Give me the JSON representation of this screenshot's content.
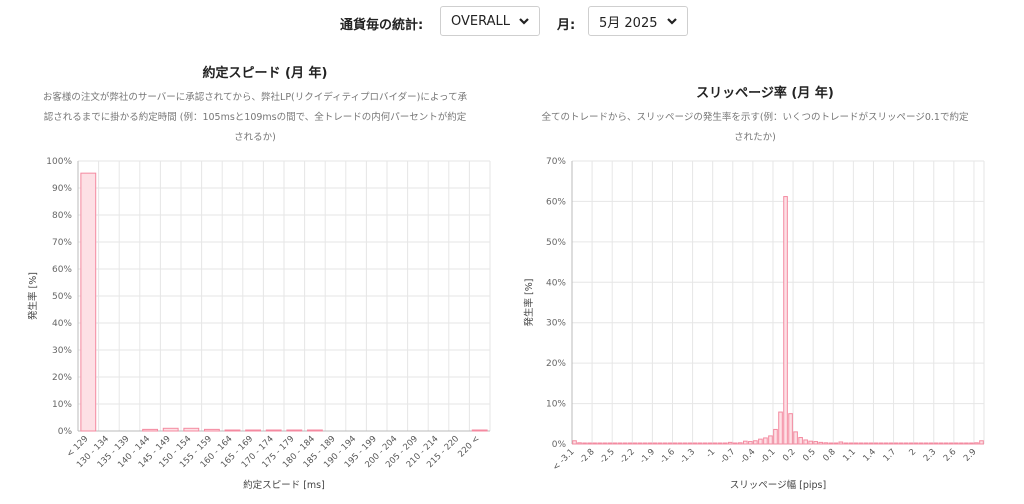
{
  "controls": {
    "currency_label": "通貨毎の統計:",
    "currency_value": "OVERALL",
    "month_label": "月:",
    "month_value": "5月 2025"
  },
  "left": {
    "title": "約定スピード (月 年)",
    "description": "お客様の注文が弊社のサーバーに承認されてから、弊社LP(リクイディティプロバイダー)によって承認されるまでに掛かる約定時間 (例：105msと109msの間で、全トレードの内何パーセントが約定されるか)"
  },
  "right": {
    "title": "スリッページ率 (月 年)",
    "description": "全てのトレードから、スリッページの発生率を示す(例：いくつのトレードがスリッページ0.1で約定されたか)"
  },
  "colors": {
    "bar_fill": "#fde0e5",
    "bar_stroke": "#f48aa0",
    "grid": "#e6e6e6",
    "axis": "#bbbbbb"
  },
  "chart_data": [
    {
      "type": "bar",
      "xlabel": "約定スピード [ms]",
      "ylabel": "発生率 [%]",
      "ylim": [
        0,
        100
      ],
      "yticks": [
        "0%",
        "10%",
        "20%",
        "30%",
        "40%",
        "50%",
        "60%",
        "70%",
        "80%",
        "90%",
        "100%"
      ],
      "categories": [
        "< 129",
        "130 - 134",
        "135 - 139",
        "140 - 144",
        "145 - 149",
        "150 - 154",
        "155 - 159",
        "160 - 164",
        "165 - 169",
        "170 - 174",
        "175 - 179",
        "180 - 184",
        "185 - 189",
        "190 - 194",
        "195 - 199",
        "200 - 204",
        "205 - 209",
        "210 - 214",
        "215 - 220",
        "220 <"
      ],
      "values": [
        95.5,
        0,
        0,
        0.6,
        1.0,
        1.0,
        0.6,
        0.2,
        0.2,
        0.1,
        0.1,
        0.1,
        0,
        0,
        0,
        0,
        0,
        0,
        0,
        0.3
      ],
      "grid": true
    },
    {
      "type": "bar",
      "xlabel": "スリッページ幅 [pips]",
      "ylabel": "発生率 [%]",
      "ylim": [
        0,
        70
      ],
      "yticks": [
        "0%",
        "10%",
        "20%",
        "30%",
        "40%",
        "50%",
        "60%",
        "70%"
      ],
      "tick_labels": [
        "< -3.1",
        "-2.8",
        "-2.5",
        "-2.2",
        "-1.9",
        "-1.6",
        "-1.3",
        "-1",
        "-0.7",
        "-0.4",
        "-0.1",
        "0.2",
        "0.5",
        "0.8",
        "1.1",
        "1.4",
        "1.7",
        "2",
        "2.3",
        "2.6",
        "2.9"
      ],
      "values": [
        0.8,
        0.3,
        0.1,
        0.1,
        0.1,
        0.1,
        0.1,
        0.1,
        0.1,
        0.1,
        0.1,
        0.1,
        0.1,
        0.1,
        0.1,
        0.1,
        0.1,
        0.1,
        0.1,
        0.1,
        0.1,
        0.2,
        0.1,
        0.1,
        0.1,
        0.1,
        0.1,
        0.1,
        0.2,
        0.1,
        0.2,
        0.4,
        0.2,
        0.3,
        0.7,
        0.6,
        0.8,
        1.2,
        1.5,
        2.0,
        3.6,
        7.9,
        61.2,
        7.5,
        3.0,
        1.6,
        1.0,
        0.7,
        0.6,
        0.4,
        0.3,
        0.2,
        0.2,
        0.5,
        0.2,
        0.1,
        0.1,
        0.1,
        0.1,
        0.1,
        0.1,
        0.1,
        0.1,
        0.1,
        0.2,
        0.1,
        0.1,
        0.1,
        0.1,
        0.1,
        0.1,
        0.1,
        0.1,
        0.1,
        0.1,
        0.1,
        0.1,
        0.1,
        0.1,
        0.1,
        0.3,
        0.8
      ],
      "grid": true
    }
  ]
}
